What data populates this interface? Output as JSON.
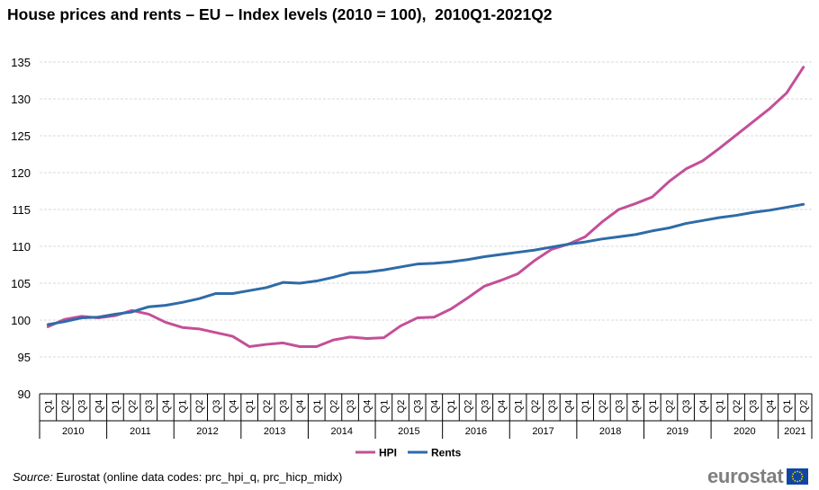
{
  "title": "House prices and rents – EU – Index levels (2010 = 100),  2010Q1-2021Q2",
  "source_label": "Source:",
  "source_text": " Eurostat (online data codes: prc_hpi_q, prc_hicp_midx)",
  "logo_text": "eurostat",
  "colors": {
    "HPI": "#c44f98",
    "Rents": "#2e6ba8",
    "grid": "#d9d9d9",
    "axis": "#000000"
  },
  "chart_data": {
    "type": "line",
    "title": "House prices and rents – EU – Index levels (2010 = 100),  2010Q1-2021Q2",
    "ylim": [
      90,
      135
    ],
    "yticks": [
      90,
      95,
      100,
      105,
      110,
      115,
      120,
      125,
      130,
      135
    ],
    "grid": true,
    "legend_position": "bottom",
    "years": [
      "2010",
      "2011",
      "2012",
      "2013",
      "2014",
      "2015",
      "2016",
      "2017",
      "2018",
      "2019",
      "2020",
      "2021"
    ],
    "quarters": [
      "Q1",
      "Q2",
      "Q3",
      "Q4",
      "Q1",
      "Q2",
      "Q3",
      "Q4",
      "Q1",
      "Q2",
      "Q3",
      "Q4",
      "Q1",
      "Q2",
      "Q3",
      "Q4",
      "Q1",
      "Q2",
      "Q3",
      "Q4",
      "Q1",
      "Q2",
      "Q3",
      "Q4",
      "Q1",
      "Q2",
      "Q3",
      "Q4",
      "Q1",
      "Q2",
      "Q3",
      "Q4",
      "Q1",
      "Q2",
      "Q3",
      "Q4",
      "Q1",
      "Q2",
      "Q3",
      "Q4",
      "Q1",
      "Q2",
      "Q3",
      "Q4",
      "Q1",
      "Q2"
    ],
    "series": [
      {
        "name": "HPI",
        "values": [
          99.1,
          100.1,
          100.5,
          100.3,
          100.6,
          101.3,
          100.8,
          99.7,
          99.0,
          98.8,
          98.3,
          97.8,
          96.4,
          96.7,
          96.9,
          96.4,
          96.4,
          97.3,
          97.7,
          97.5,
          97.6,
          99.2,
          100.3,
          100.4,
          101.5,
          103.0,
          104.6,
          105.4,
          106.3,
          108.1,
          109.6,
          110.3,
          111.3,
          113.3,
          115.0,
          115.8,
          116.7,
          118.8,
          120.5,
          121.6,
          123.3,
          125.1,
          126.9,
          128.7,
          130.8,
          134.3
        ]
      },
      {
        "name": "Rents",
        "values": [
          99.4,
          99.8,
          100.3,
          100.4,
          100.8,
          101.1,
          101.8,
          102.0,
          102.4,
          102.9,
          103.6,
          103.6,
          104.0,
          104.4,
          105.1,
          105.0,
          105.3,
          105.8,
          106.4,
          106.5,
          106.8,
          107.2,
          107.6,
          107.7,
          107.9,
          108.2,
          108.6,
          108.9,
          109.2,
          109.5,
          109.9,
          110.3,
          110.6,
          111.0,
          111.3,
          111.6,
          112.1,
          112.5,
          113.1,
          113.5,
          113.9,
          114.2,
          114.6,
          114.9,
          115.3,
          115.7
        ]
      }
    ]
  }
}
